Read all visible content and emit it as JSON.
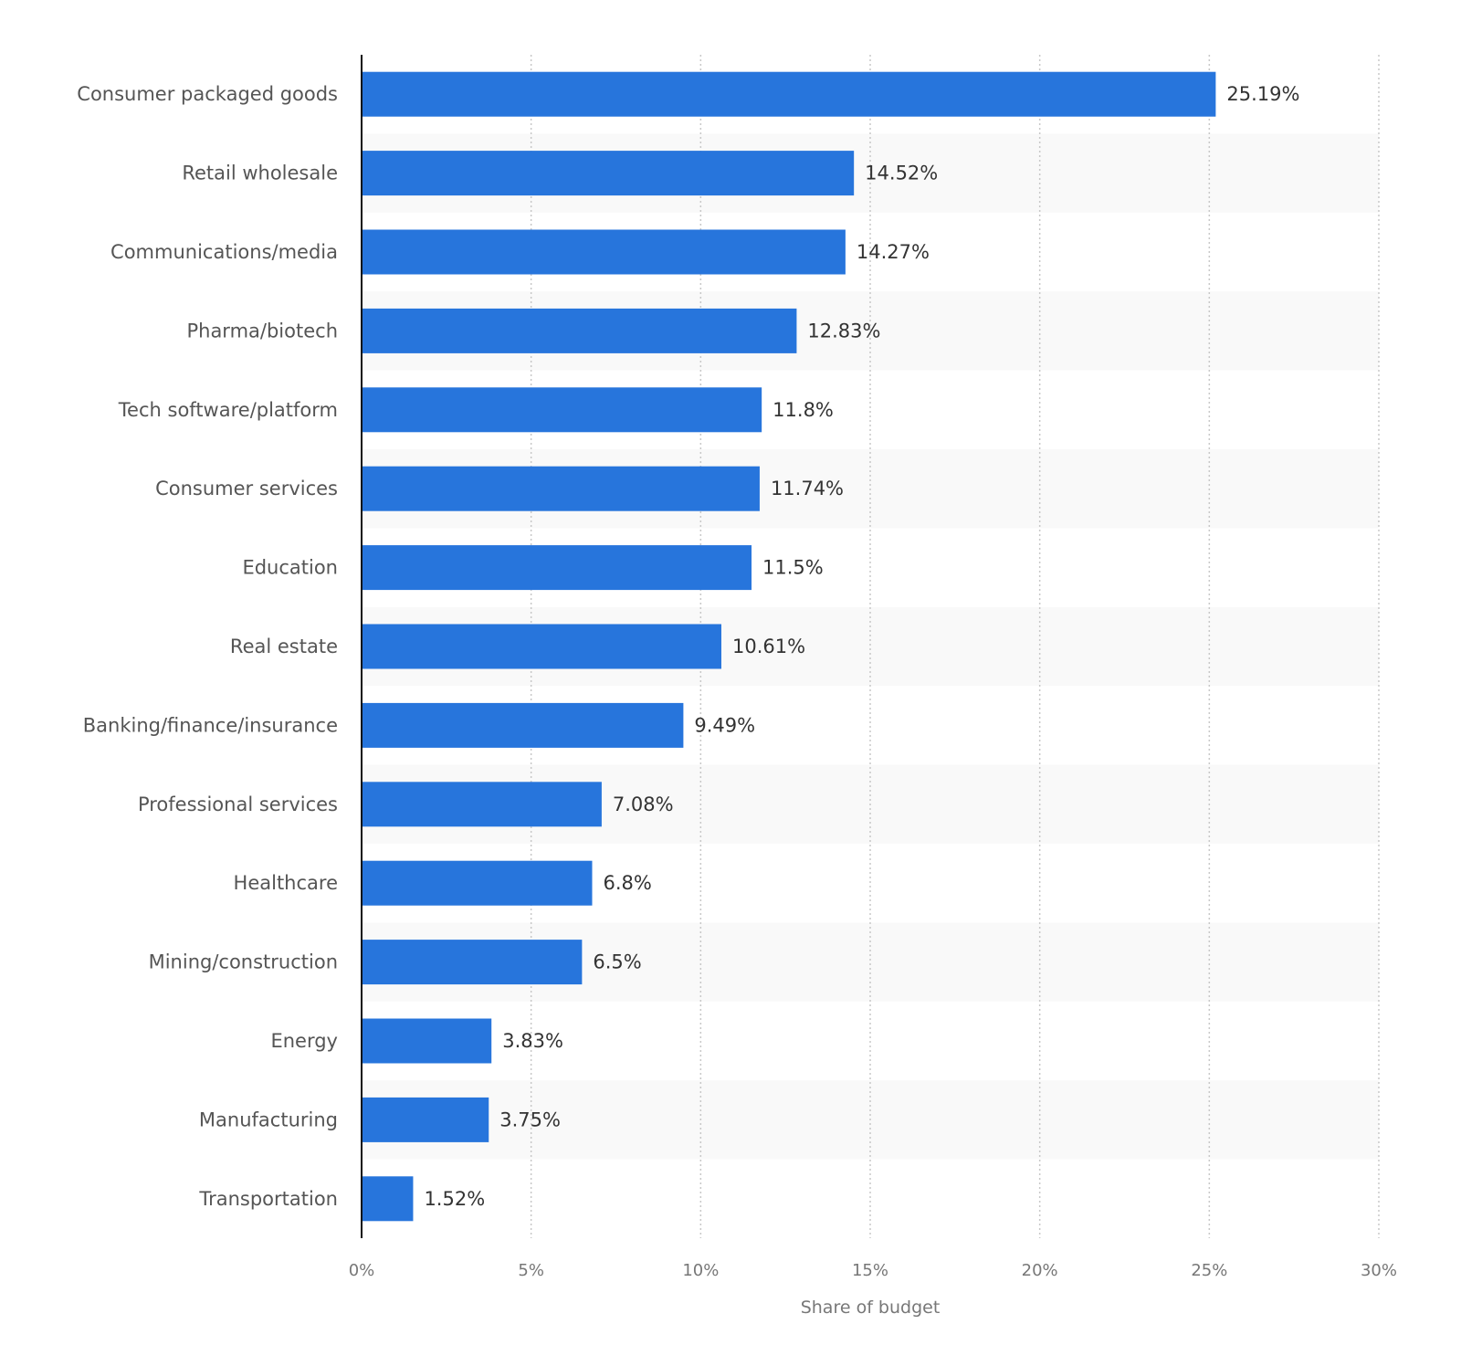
{
  "chart_data": {
    "type": "bar",
    "orientation": "horizontal",
    "categories": [
      "Consumer packaged goods",
      "Retail wholesale",
      "Communications/media",
      "Pharma/biotech",
      "Tech software/platform",
      "Consumer services",
      "Education",
      "Real estate",
      "Banking/finance/insurance",
      "Professional services",
      "Healthcare",
      "Mining/construction",
      "Energy",
      "Manufacturing",
      "Transportation"
    ],
    "values": [
      25.19,
      14.52,
      14.27,
      12.83,
      11.8,
      11.74,
      11.5,
      10.61,
      9.49,
      7.08,
      6.8,
      6.5,
      3.83,
      3.75,
      1.52
    ],
    "data_labels": [
      "25.19%",
      "14.52%",
      "14.27%",
      "12.83%",
      "11.8%",
      "11.74%",
      "11.5%",
      "10.61%",
      "9.49%",
      "7.08%",
      "6.8%",
      "6.5%",
      "3.83%",
      "3.75%",
      "1.52%"
    ],
    "xlabel": "Share of budget",
    "ylabel": "",
    "xlim": [
      0,
      30
    ],
    "xticks": [
      0,
      5,
      10,
      15,
      20,
      25,
      30
    ],
    "xtick_labels": [
      "0%",
      "5%",
      "10%",
      "15%",
      "20%",
      "25%",
      "30%"
    ],
    "grid": "vertical dotted",
    "bar_color": "#2775dc",
    "band_color": "#f9f9f9"
  }
}
